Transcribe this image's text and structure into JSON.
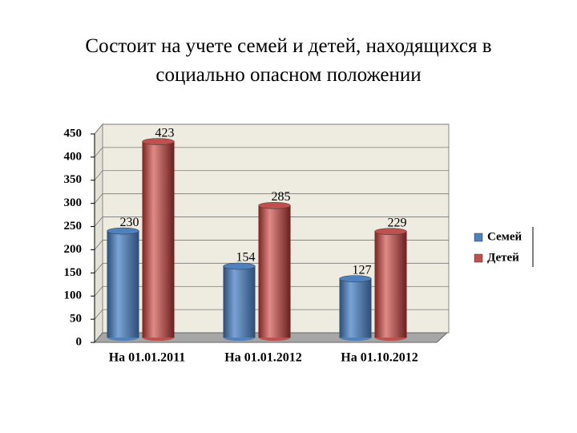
{
  "chart_data": {
    "type": "bar3d",
    "title": "Состоит на учете семей и детей, находящихся в социально опасном положении",
    "categories": [
      "На 01.01.2011",
      "На 01.01.2012",
      "На 01.10.2012"
    ],
    "series": [
      {
        "name": "Семей",
        "color": "#4f81bd",
        "values": [
          230,
          154,
          127
        ]
      },
      {
        "name": "Детей",
        "color": "#c0504d",
        "values": [
          423,
          285,
          229
        ]
      }
    ],
    "ylim": [
      0,
      450
    ],
    "yticks": [
      0,
      50,
      100,
      150,
      200,
      250,
      300,
      350,
      400,
      450
    ],
    "grid": true,
    "legend": "right"
  }
}
